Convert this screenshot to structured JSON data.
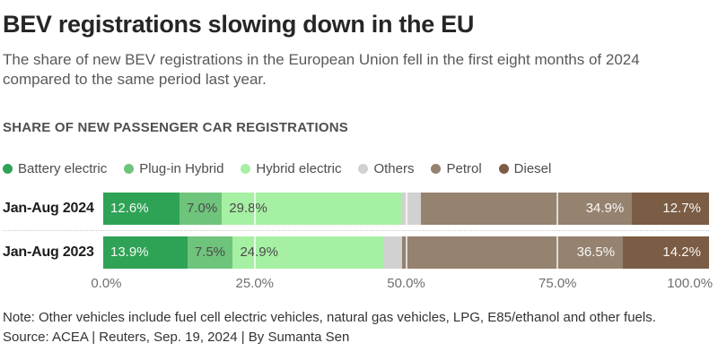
{
  "header": {
    "title": "BEV registrations slowing down in the EU",
    "subtitle": "The share of new BEV registrations in the European Union fell in the first eight months of 2024 compared to the same period last year.",
    "kicker": "SHARE OF NEW PASSENGER CAR REGISTRATIONS"
  },
  "chart_data": {
    "type": "bar",
    "stacked": true,
    "orientation": "horizontal",
    "unit": "%",
    "title": "SHARE OF NEW PASSENGER CAR REGISTRATIONS",
    "categories": [
      "Jan-Aug 2024",
      "Jan-Aug 2023"
    ],
    "series": [
      {
        "name": "Battery electric",
        "color": "#2fa355",
        "values": [
          12.6,
          13.9
        ],
        "show_label": true,
        "label_style": "light",
        "label_align": "left"
      },
      {
        "name": "Plug-in Hybrid",
        "color": "#6fc47c",
        "values": [
          7.0,
          7.5
        ],
        "show_label": true,
        "label_style": "dark",
        "label_align": "left"
      },
      {
        "name": "Hybrid electric",
        "color": "#a6f0a3",
        "values": [
          29.8,
          24.9
        ],
        "show_label": true,
        "label_style": "dark",
        "label_align": "left"
      },
      {
        "name": "Others",
        "color": "#d1d1d1",
        "values": [
          3.0,
          3.0
        ],
        "show_label": false,
        "label_style": "dark",
        "label_align": "left"
      },
      {
        "name": "Petrol",
        "color": "#95826f",
        "values": [
          34.9,
          36.5
        ],
        "show_label": true,
        "label_style": "light",
        "label_align": "right"
      },
      {
        "name": "Diesel",
        "color": "#7b5c44",
        "values": [
          12.7,
          14.2
        ],
        "show_label": true,
        "label_style": "light",
        "label_align": "right"
      }
    ],
    "x_axis": {
      "range": [
        0,
        100
      ],
      "ticks": [
        "0.0%",
        "25.0%",
        "50.0%",
        "75.0%",
        "100.0%"
      ],
      "gridlines_pct": [
        25,
        50,
        75
      ]
    },
    "legend_position": "top"
  },
  "footer": {
    "note": "Note: Other vehicles include fuel cell electric vehicles, natural gas vehicles, LPG, E85/ethanol and other fuels.",
    "source": "Source: ACEA | Reuters, Sep. 19, 2024 | By Sumanta Sen"
  }
}
